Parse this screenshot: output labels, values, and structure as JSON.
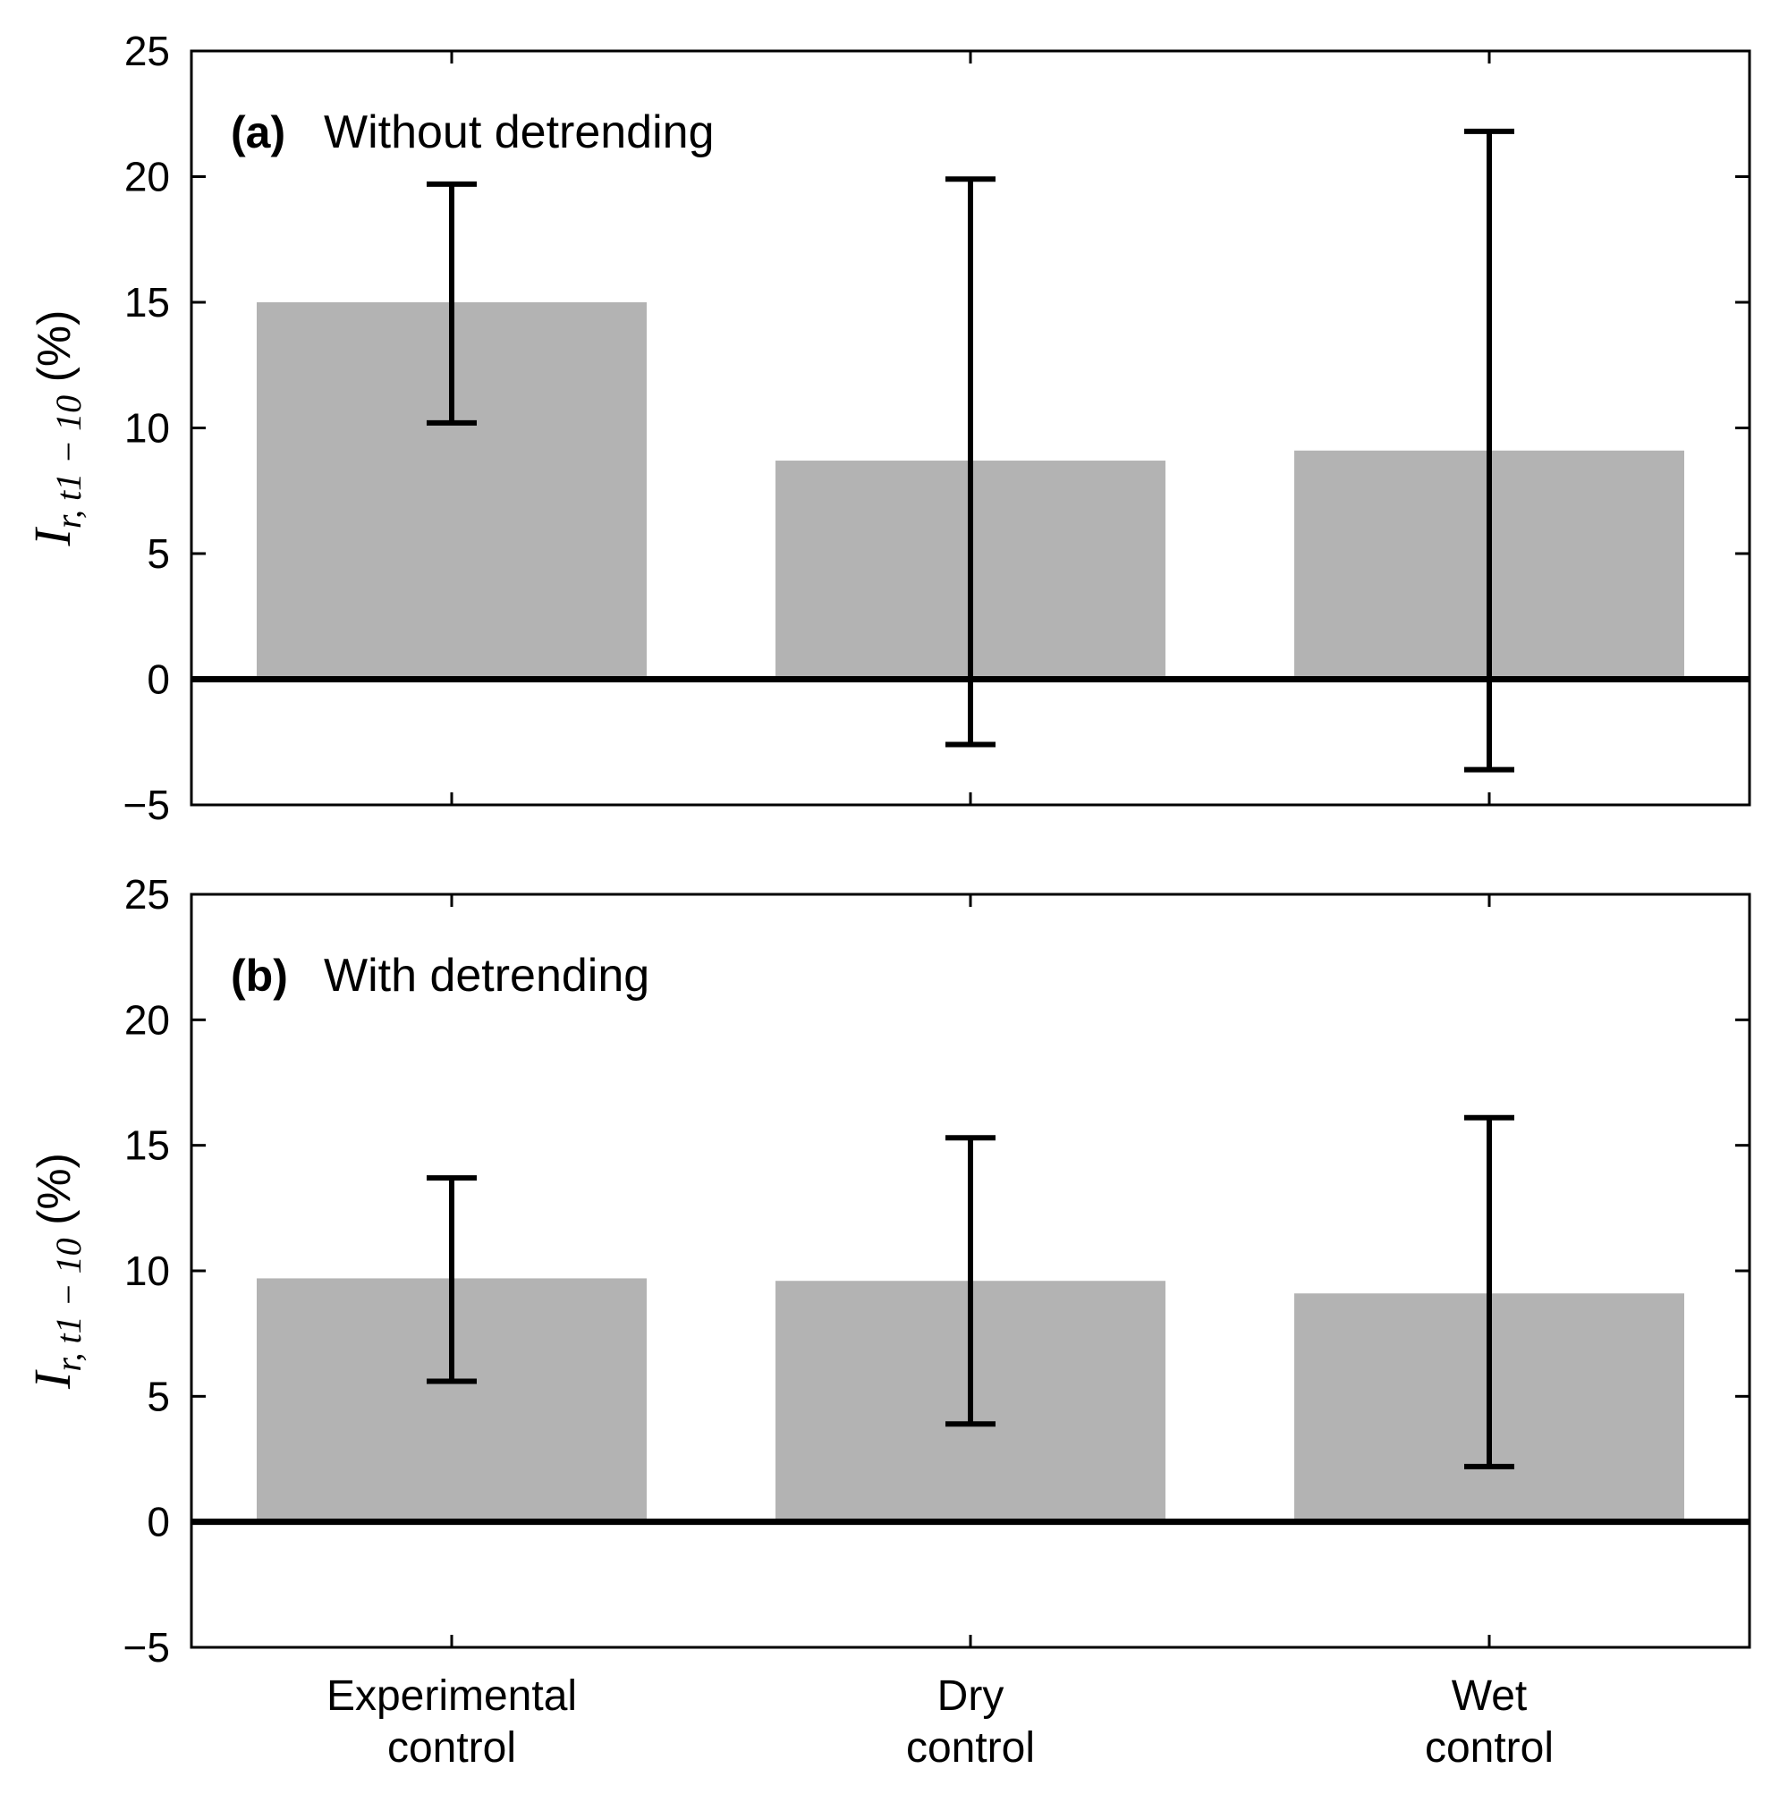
{
  "chart_data": [
    {
      "type": "bar",
      "panel_tag": "(a)",
      "title": "Without detrending",
      "categories": [
        [
          "Experimental",
          "control"
        ],
        [
          "Dry",
          "control"
        ],
        [
          "Wet",
          "control"
        ]
      ],
      "values": [
        15.0,
        8.7,
        9.1
      ],
      "error_low": [
        10.2,
        -2.6,
        -3.6
      ],
      "error_high": [
        19.7,
        19.9,
        21.8
      ],
      "ylabel": {
        "main": "I",
        "sub": "r, t1 − 10",
        "unit": " (%)"
      },
      "ylim": [
        -5,
        25
      ],
      "yticks": [
        -5,
        0,
        5,
        10,
        15,
        20,
        25
      ],
      "show_category_labels": false,
      "bar_color": "#b3b3b3"
    },
    {
      "type": "bar",
      "panel_tag": "(b)",
      "title": "With detrending",
      "categories": [
        [
          "Experimental",
          "control"
        ],
        [
          "Dry",
          "control"
        ],
        [
          "Wet",
          "control"
        ]
      ],
      "values": [
        9.7,
        9.6,
        9.1
      ],
      "error_low": [
        5.6,
        3.9,
        2.2
      ],
      "error_high": [
        13.7,
        15.3,
        16.1
      ],
      "ylabel": {
        "main": "I",
        "sub": "r, t1 − 10",
        "unit": " (%)"
      },
      "ylim": [
        -5,
        25
      ],
      "yticks": [
        -5,
        0,
        5,
        10,
        15,
        20,
        25
      ],
      "show_category_labels": true,
      "bar_color": "#b3b3b3"
    }
  ]
}
